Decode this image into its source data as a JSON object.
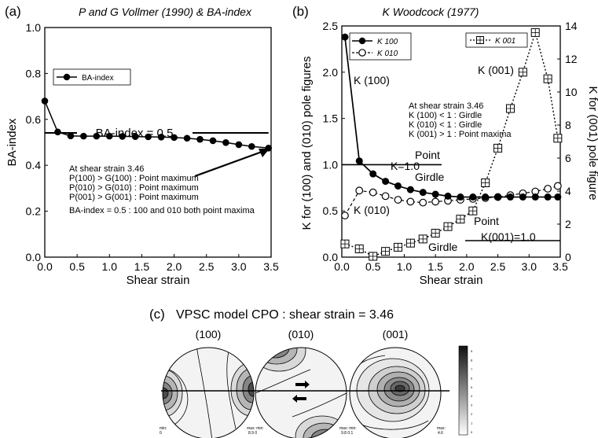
{
  "chart_data": [
    {
      "panel": "(a)",
      "type": "line",
      "title": "P and G Vollmer (1990) & BA-index",
      "xlabel": "Shear strain",
      "ylabel": "BA-index",
      "xlim": [
        0.0,
        3.5
      ],
      "ylim": [
        0.0,
        1.0
      ],
      "xticks": [
        "0.0",
        "0.5",
        "1.0",
        "1.5",
        "2.0",
        "2.5",
        "3.0",
        "3.5"
      ],
      "yticks": [
        "0.0",
        "0.2",
        "0.4",
        "0.6",
        "0.8",
        "1.0"
      ],
      "series": [
        {
          "name": "BA-index",
          "marker": "filled-circle",
          "x": [
            0.0,
            0.2,
            0.4,
            0.6,
            0.8,
            1.0,
            1.2,
            1.4,
            1.6,
            1.8,
            2.0,
            2.2,
            2.4,
            2.6,
            2.8,
            3.0,
            3.2,
            3.46
          ],
          "y": [
            0.68,
            0.545,
            0.528,
            0.527,
            0.527,
            0.527,
            0.526,
            0.525,
            0.524,
            0.523,
            0.521,
            0.518,
            0.513,
            0.507,
            0.499,
            0.49,
            0.482,
            0.475
          ]
        }
      ],
      "reference_line": {
        "y": 0.5,
        "label": "BA-index = 0.5"
      },
      "annotations": [
        "At shear strain 3.46",
        "P(100) > G(100) : Point maximum",
        "P(010) > G(010) : Point maximum",
        "P(001) > G(001) : Point maximum",
        "BA-index = 0.5 : 100 and 010 both point maxima"
      ]
    },
    {
      "panel": "(b)",
      "type": "line",
      "title": "K Woodcock (1977)",
      "xlabel": "Shear strain",
      "ylabel": "K for (100) and (010) pole figures",
      "y2label": "K for (001) pole figure",
      "xlim": [
        0.0,
        3.5
      ],
      "ylim": [
        0.0,
        2.5
      ],
      "y2lim": [
        0,
        14
      ],
      "xticks": [
        "0.0",
        "0.5",
        "1.0",
        "1.5",
        "2.0",
        "2.5",
        "3.0",
        "3.5"
      ],
      "yticks": [
        "0.0",
        "0.5",
        "1.0",
        "1.5",
        "2.0",
        "2.5"
      ],
      "y2ticks": [
        "0",
        "2",
        "4",
        "6",
        "8",
        "10",
        "12",
        "14"
      ],
      "series": [
        {
          "name": "K 100",
          "axis": "left",
          "marker": "filled-circle",
          "line": "solid",
          "x": [
            0.05,
            0.28,
            0.5,
            0.7,
            0.9,
            1.1,
            1.3,
            1.5,
            1.7,
            1.9,
            2.1,
            2.3,
            2.5,
            2.7,
            2.9,
            3.1,
            3.3,
            3.46
          ],
          "y": [
            2.38,
            1.04,
            0.9,
            0.82,
            0.77,
            0.73,
            0.7,
            0.68,
            0.66,
            0.65,
            0.65,
            0.65,
            0.65,
            0.65,
            0.65,
            0.65,
            0.65,
            0.65
          ]
        },
        {
          "name": "K 010",
          "axis": "left",
          "marker": "open-circle",
          "line": "dashed",
          "x": [
            0.05,
            0.28,
            0.5,
            0.7,
            0.9,
            1.1,
            1.3,
            1.5,
            1.7,
            1.9,
            2.1,
            2.3,
            2.5,
            2.7,
            2.9,
            3.1,
            3.3,
            3.46
          ],
          "y": [
            0.45,
            0.72,
            0.7,
            0.66,
            0.62,
            0.6,
            0.59,
            0.6,
            0.61,
            0.62,
            0.63,
            0.64,
            0.65,
            0.67,
            0.69,
            0.71,
            0.74,
            0.77
          ]
        },
        {
          "name": "K 001",
          "axis": "right",
          "marker": "crossed-square",
          "line": "dotted",
          "x": [
            0.05,
            0.28,
            0.5,
            0.7,
            0.9,
            1.1,
            1.3,
            1.5,
            1.7,
            1.9,
            2.1,
            2.3,
            2.5,
            2.7,
            2.9,
            3.1,
            3.3,
            3.46
          ],
          "y": [
            0.8,
            0.5,
            0.05,
            0.35,
            0.6,
            0.85,
            1.1,
            1.45,
            1.85,
            2.3,
            2.8,
            4.5,
            6.6,
            9.0,
            11.2,
            13.6,
            10.8,
            7.2
          ]
        }
      ],
      "labels": {
        "k100": "K (100)",
        "k010": "K (010)",
        "k001": "K (001)",
        "k_one": "K=1.0",
        "k001_one": "K(001)=1.0",
        "point": "Point",
        "girdle": "Girdle"
      },
      "annotations": [
        "At shear strain 3.46",
        "K (100) < 1 : Girdle",
        "K (010) < 1 : Girdle",
        "K (001) > 1 : Point maxima"
      ]
    }
  ],
  "cpo": {
    "letter": "(c)",
    "title": "VPSC model CPO : shear strain = 3.46",
    "plots": [
      {
        "label": "(100)",
        "min_label": "min:",
        "min_value": "0",
        "max_label": "max: min:",
        "max_value": "8.9 0"
      },
      {
        "label": "(010)",
        "min_label": "",
        "min_value": "",
        "max_label": "max: min:",
        "max_value": "9.8 0.1"
      },
      {
        "label": "(001)",
        "min_label": "",
        "min_value": "",
        "max_label": "max:",
        "max_value": "4.6"
      }
    ],
    "scale_ticks": [
      "9",
      "8",
      "7",
      "6",
      "5",
      "4",
      "3",
      "2",
      "1",
      "0"
    ]
  },
  "panel_letters": {
    "a": "(a)",
    "b": "(b)"
  }
}
